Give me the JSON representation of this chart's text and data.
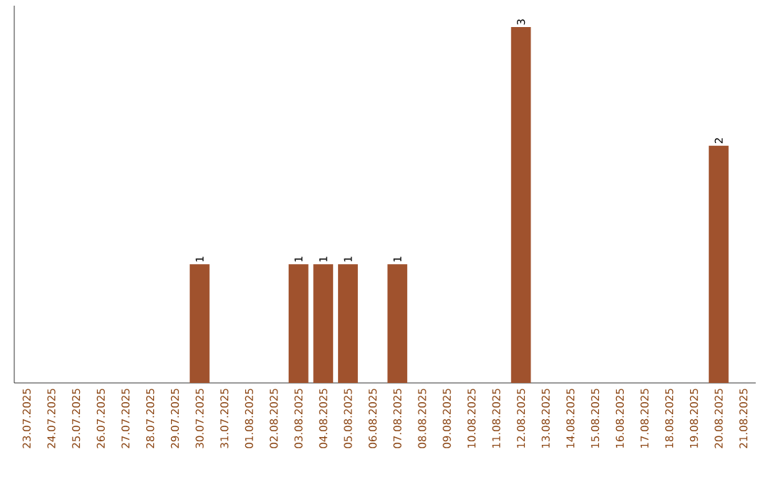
{
  "chart_data": {
    "type": "bar",
    "categories": [
      "23.07.2025",
      "24.07.2025",
      "25.07.2025",
      "26.07.2025",
      "27.07.2025",
      "28.07.2025",
      "29.07.2025",
      "30.07.2025",
      "31.07.2025",
      "01.08.2025",
      "02.08.2025",
      "03.08.2025",
      "04.08.2025",
      "05.08.2025",
      "06.08.2025",
      "07.08.2025",
      "08.08.2025",
      "09.08.2025",
      "10.08.2025",
      "11.08.2025",
      "12.08.2025",
      "13.08.2025",
      "14.08.2025",
      "15.08.2025",
      "16.08.2025",
      "17.08.2025",
      "18.08.2025",
      "19.08.2025",
      "20.08.2025",
      "21.08.2025"
    ],
    "values": [
      0,
      0,
      0,
      0,
      0,
      0,
      0,
      1,
      0,
      0,
      0,
      1,
      1,
      1,
      0,
      1,
      0,
      0,
      0,
      0,
      3,
      0,
      0,
      0,
      0,
      0,
      0,
      0,
      2,
      0
    ],
    "value_labels": [
      null,
      null,
      null,
      null,
      null,
      null,
      null,
      "1",
      null,
      null,
      null,
      "1",
      "1",
      "1",
      null,
      "1",
      null,
      null,
      null,
      null,
      "3",
      null,
      null,
      null,
      null,
      null,
      null,
      null,
      "2",
      null
    ],
    "color": "#a0522d",
    "tick_labels": "x"
  }
}
